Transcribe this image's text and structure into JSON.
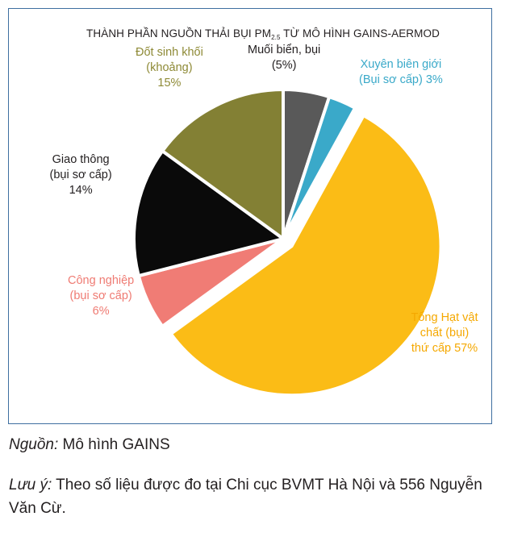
{
  "chart_data": {
    "type": "pie",
    "title_main": "THÀNH PHẦN NGUỒN THẢI BỤI PM",
    "title_sub": "2.5",
    "title_tail": " TỪ MÔ HÌNH GAINS-AERMOD",
    "slices": [
      {
        "id": "muoi",
        "value": 5,
        "color": "#595959",
        "label_lines": [
          "Muối biển, bụi",
          "(5%)"
        ],
        "label_color": "#231f20"
      },
      {
        "id": "xuyen",
        "value": 3,
        "color": "#3aa9c9",
        "label_lines": [
          "Xuyên biên giới",
          "(Bụi sơ cấp) 3%"
        ],
        "label_color": "#3aa9c9"
      },
      {
        "id": "tong",
        "value": 57,
        "color": "#fbbc16",
        "label_lines": [
          "Tổng Hạt vật",
          "chất (bụi)",
          "thứ cấp 57%"
        ],
        "label_color": "#f5a800"
      },
      {
        "id": "cong",
        "value": 6,
        "color": "#f07c75",
        "label_lines": [
          "Công nghiệp",
          "(bụi sơ cấp)",
          "6%"
        ],
        "label_color": "#ef7b73"
      },
      {
        "id": "giao",
        "value": 14,
        "color": "#0a0a0a",
        "label_lines": [
          "Giao thông",
          "(bụi sơ cấp)",
          "14%"
        ],
        "label_color": "#231f20"
      },
      {
        "id": "dot",
        "value": 15,
        "color": "#838034",
        "label_lines": [
          "Đốt sinh khối",
          "(khoảng)",
          "15%"
        ],
        "label_color": "#8e8a36"
      }
    ],
    "exploded": [
      "tong"
    ]
  },
  "footer": {
    "source_label": "Nguồn:",
    "source_text": " Mô hình GAINS",
    "note_label": "Lưu ý:",
    "note_text": " Theo số liệu được đo tại Chi cục BVMT Hà Nội và 556 Nguyễn Văn Cừ."
  }
}
